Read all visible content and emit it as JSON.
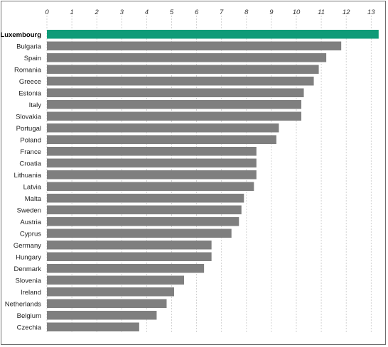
{
  "chart_data": {
    "type": "bar",
    "orientation": "horizontal",
    "title": "",
    "xlabel": "",
    "ylabel": "",
    "xlim": [
      0,
      13.3
    ],
    "ticks": [
      "0",
      "1",
      "2",
      "3",
      "4",
      "5",
      "6",
      "7",
      "8",
      "9",
      "10",
      "11",
      "12",
      "13"
    ],
    "grid": true,
    "categories": [
      "Luxembourg",
      "Bulgaria",
      "Spain",
      "Romania",
      "Greece",
      "Estonia",
      "Italy",
      "Slovakia",
      "Portugal",
      "Poland",
      "France",
      "Croatia",
      "Lithuania",
      "Latvia",
      "Malta",
      "Sweden",
      "Austria",
      "Cyprus",
      "Germany",
      "Hungary",
      "Denmark",
      "Slovenia",
      "Ireland",
      "Netherlands",
      "Belgium",
      "Czechia"
    ],
    "values": [
      13.3,
      11.8,
      11.2,
      10.9,
      10.7,
      10.3,
      10.2,
      10.2,
      9.3,
      9.2,
      8.4,
      8.4,
      8.4,
      8.3,
      7.9,
      7.8,
      7.7,
      7.4,
      6.6,
      6.6,
      6.3,
      5.5,
      5.1,
      4.8,
      4.4,
      3.7
    ],
    "highlight": "Luxembourg",
    "colors": {
      "bar": "#7f7f7f",
      "highlight": "#0f9b78",
      "grid": "#c8c8c8"
    }
  }
}
